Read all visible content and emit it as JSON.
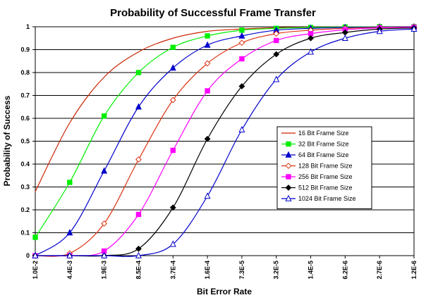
{
  "chart_data": {
    "type": "line",
    "title": "Probability of Successful Frame Transfer",
    "xlabel": "Bit Error Rate",
    "ylabel": "Probability of Success",
    "categories": [
      "1.0E-2",
      "4.4E-3",
      "1.9E-3",
      "8.5E-4",
      "3.7E-4",
      "1.6E-4",
      "7.3E-5",
      "3.2E-5",
      "1.4E-5",
      "6.2E-6",
      "2.7E-6",
      "1.2E-6"
    ],
    "x_scale": "log (decreasing)",
    "ylim": [
      0,
      1
    ],
    "yticks": [
      0,
      0.1,
      0.2,
      0.3,
      0.4,
      0.5,
      0.6,
      0.7,
      0.8,
      0.9,
      1
    ],
    "grid": "horizontal",
    "legend_position": "right",
    "series": [
      {
        "name": "16 Bit Frame Size",
        "color": "#cc2200",
        "marker": "none",
        "values": [
          0.28,
          0.58,
          0.78,
          0.89,
          0.95,
          0.98,
          0.99,
          0.996,
          0.998,
          0.999,
          1.0,
          1.0
        ]
      },
      {
        "name": "32 Bit Frame Size",
        "color": "#00ee00",
        "marker": "square",
        "values": [
          0.08,
          0.32,
          0.61,
          0.8,
          0.91,
          0.96,
          0.985,
          0.993,
          0.997,
          0.999,
          1.0,
          1.0
        ]
      },
      {
        "name": "64 Bit Frame Size",
        "color": "#0000cc",
        "marker": "triangle-filled",
        "values": [
          0.0,
          0.1,
          0.37,
          0.65,
          0.82,
          0.92,
          0.96,
          0.985,
          0.993,
          0.997,
          0.999,
          1.0
        ]
      },
      {
        "name": "128 Bit Frame Size",
        "color": "#dd3311",
        "marker": "diamond-open",
        "values": [
          0.0,
          0.01,
          0.14,
          0.42,
          0.68,
          0.84,
          0.93,
          0.97,
          0.985,
          0.993,
          0.997,
          0.999
        ]
      },
      {
        "name": "256 Bit Frame Size",
        "color": "#ff00ff",
        "marker": "square",
        "values": [
          0.0,
          0.0,
          0.02,
          0.18,
          0.46,
          0.72,
          0.86,
          0.94,
          0.97,
          0.987,
          0.995,
          0.998
        ]
      },
      {
        "name": "512 Bit Frame Size",
        "color": "#000000",
        "marker": "diamond-filled",
        "values": [
          0.0,
          0.0,
          0.0,
          0.03,
          0.21,
          0.51,
          0.74,
          0.88,
          0.95,
          0.975,
          0.99,
          0.995
        ]
      },
      {
        "name": "1024 Bit Frame Size",
        "color": "#0000cc",
        "marker": "triangle-open",
        "values": [
          0.0,
          0.0,
          0.0,
          0.0,
          0.05,
          0.26,
          0.55,
          0.77,
          0.89,
          0.95,
          0.98,
          0.99
        ]
      }
    ]
  }
}
